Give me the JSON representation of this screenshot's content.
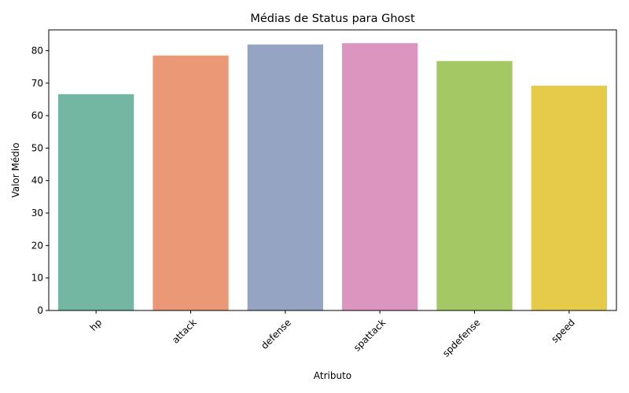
{
  "chart_data": {
    "type": "bar",
    "title": "Médias de Status para Ghost",
    "xlabel": "Atributo",
    "ylabel": "Valor Médio",
    "categories": [
      "hp",
      "attack",
      "defense",
      "spattack",
      "spdefense",
      "speed"
    ],
    "values": [
      66.6,
      78.5,
      81.9,
      82.3,
      76.8,
      69.2
    ],
    "colors": [
      "#73b6a1",
      "#ea9876",
      "#95a4c3",
      "#db95be",
      "#a3c864",
      "#e5cb49"
    ],
    "ylim": [
      0,
      86.4
    ],
    "yticks": [
      0,
      10,
      20,
      30,
      40,
      50,
      60,
      70,
      80
    ],
    "grid": false,
    "legend": "none",
    "x_tick_rotation": 45
  }
}
